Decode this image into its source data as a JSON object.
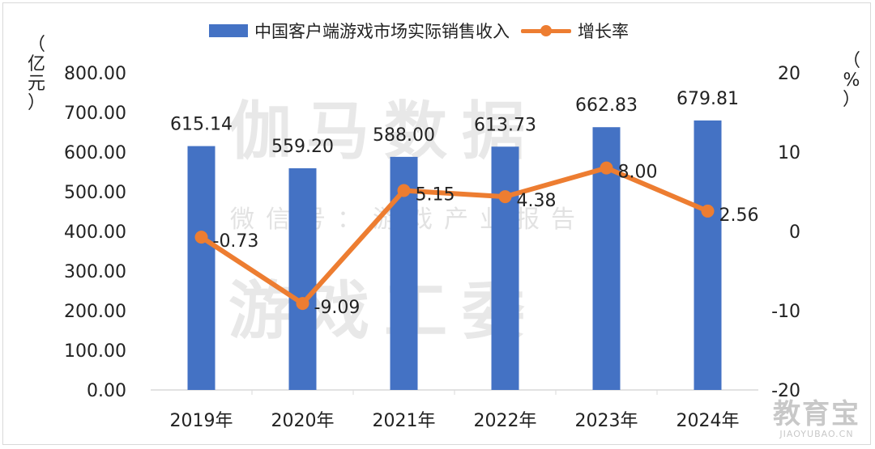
{
  "colors": {
    "bar": "#4472C4",
    "line": "#ED7D31",
    "axis": "#d9d9d9",
    "text": "#222222",
    "watermark": "#d6d6d6"
  },
  "legend": {
    "bar_label": "中国客户端游戏市场实际销售收入",
    "line_label": "增长率"
  },
  "units": {
    "left": [
      "（",
      "亿",
      "元",
      "）"
    ],
    "right": [
      "（",
      "%",
      "）"
    ]
  },
  "watermark": {
    "main": "伽马数据",
    "sub": "微信号：游戏产业报告",
    "bottom": "游戏工委"
  },
  "logo": {
    "top": "教育宝",
    "bottom": "JIAOYUBAO.CN"
  },
  "chart_data": {
    "type": "bar",
    "categories": [
      "2019年",
      "2020年",
      "2021年",
      "2022年",
      "2023年",
      "2024年"
    ],
    "series": [
      {
        "name": "中国客户端游戏市场实际销售收入",
        "type": "bar",
        "axis": "left",
        "values": [
          615.14,
          559.2,
          588.0,
          613.73,
          662.83,
          679.81
        ],
        "labels": [
          "615.14",
          "559.20",
          "588.00",
          "613.73",
          "662.83",
          "679.81"
        ]
      },
      {
        "name": "增长率",
        "type": "line",
        "axis": "right",
        "values": [
          -0.73,
          -9.09,
          5.15,
          4.38,
          8.0,
          2.56
        ],
        "labels": [
          "-0.73",
          "-9.09",
          "5.15",
          "4.38",
          "8.00",
          "2.56"
        ]
      }
    ],
    "y_left": {
      "min": 0,
      "max": 800,
      "step": 100,
      "ticks": [
        "0.00",
        "100.00",
        "200.00",
        "300.00",
        "400.00",
        "500.00",
        "600.00",
        "700.00",
        "800.00"
      ]
    },
    "y_right": {
      "min": -20,
      "max": 20,
      "step": 10,
      "ticks": [
        "-20",
        "-10",
        "0",
        "10",
        "20"
      ]
    },
    "legend_position": "top",
    "grid": false
  }
}
